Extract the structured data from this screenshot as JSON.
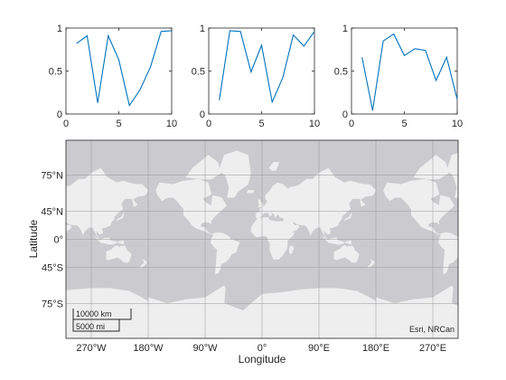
{
  "chart_data": [
    {
      "type": "line",
      "x": [
        1,
        2,
        3,
        4,
        5,
        6,
        7,
        8,
        9,
        10
      ],
      "values": [
        0.82,
        0.91,
        0.13,
        0.91,
        0.63,
        0.1,
        0.28,
        0.55,
        0.96,
        0.97
      ],
      "xlim": [
        0,
        10
      ],
      "ylim": [
        0,
        1
      ],
      "xticks": [
        "0",
        "5",
        "10"
      ],
      "yticks": [
        "0",
        "0.5",
        "1"
      ],
      "color": "#0072BD"
    },
    {
      "type": "line",
      "x": [
        1,
        2,
        3,
        4,
        5,
        6,
        7,
        8,
        9,
        10
      ],
      "values": [
        0.16,
        0.97,
        0.96,
        0.49,
        0.8,
        0.14,
        0.42,
        0.92,
        0.79,
        0.96
      ],
      "xlim": [
        0,
        10
      ],
      "ylim": [
        0,
        1
      ],
      "xticks": [
        "0",
        "5",
        "10"
      ],
      "yticks": [
        "0",
        "0.5",
        "1"
      ],
      "color": "#0072BD"
    },
    {
      "type": "line",
      "x": [
        1,
        2,
        3,
        4,
        5,
        6,
        7,
        8,
        9,
        10
      ],
      "values": [
        0.66,
        0.04,
        0.85,
        0.93,
        0.68,
        0.76,
        0.74,
        0.39,
        0.66,
        0.17
      ],
      "xlim": [
        0,
        10
      ],
      "ylim": [
        0,
        1
      ],
      "xticks": [
        "0",
        "5",
        "10"
      ],
      "yticks": [
        "0",
        "0.5",
        "1"
      ],
      "color": "#0072BD"
    }
  ],
  "map": {
    "xlabel": "Longitude",
    "ylabel": "Latitude",
    "lon_range": [
      -310,
      310
    ],
    "lat_range": [
      -85,
      85
    ],
    "lon_ticks": [
      {
        "value": -270,
        "label": "270°W"
      },
      {
        "value": -180,
        "label": "180°W"
      },
      {
        "value": -90,
        "label": "90°W"
      },
      {
        "value": 0,
        "label": "0°"
      },
      {
        "value": 90,
        "label": "90°E"
      },
      {
        "value": 180,
        "label": "180°E"
      },
      {
        "value": 270,
        "label": "270°E"
      }
    ],
    "lat_ticks": [
      {
        "value": 75,
        "label": "75°N"
      },
      {
        "value": 45,
        "label": "45°N"
      },
      {
        "value": 0,
        "label": "0°"
      },
      {
        "value": -45,
        "label": "45°S"
      },
      {
        "value": -75,
        "label": "75°S"
      }
    ],
    "attribution": "Esri, NRCan",
    "scalebar": {
      "km_label": "10000 km",
      "mi_label": "5000 mi"
    },
    "colors": {
      "ocean": "#cbcbcf",
      "land": "#eeeeee",
      "grid": "#9a9a9a"
    }
  }
}
